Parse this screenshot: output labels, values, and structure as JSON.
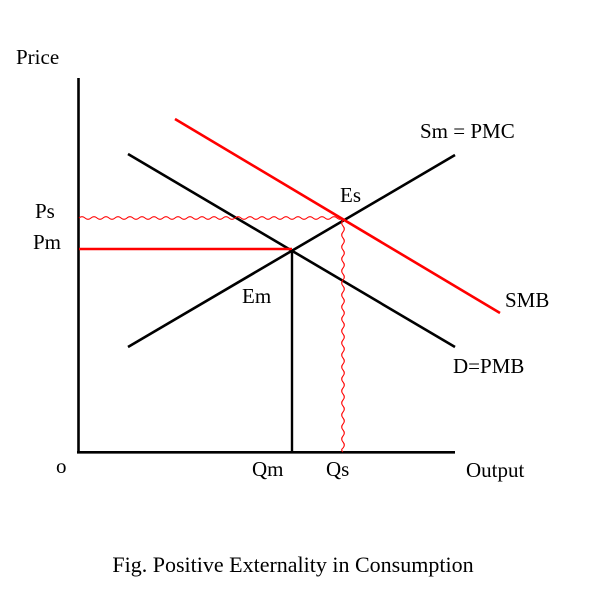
{
  "colors": {
    "background": "#ffffff",
    "curve_black": "#000000",
    "externality_red": "#ff0000"
  },
  "axes": {
    "y_label": "Price",
    "x_label": "Output",
    "origin_label": "o"
  },
  "curves": {
    "supply_label": "Sm = PMC",
    "demand_label": "D=PMB",
    "social_benefit_label": "SMB"
  },
  "points": {
    "social_equilibrium_label": "Es",
    "market_equilibrium_label": "Em"
  },
  "price_levels": {
    "social_price_label": "Ps",
    "market_price_label": "Pm"
  },
  "quantity_levels": {
    "market_quantity_label": "Qm",
    "social_quantity_label": "Qs"
  },
  "caption": "Fig. Positive Externality in Consumption"
}
